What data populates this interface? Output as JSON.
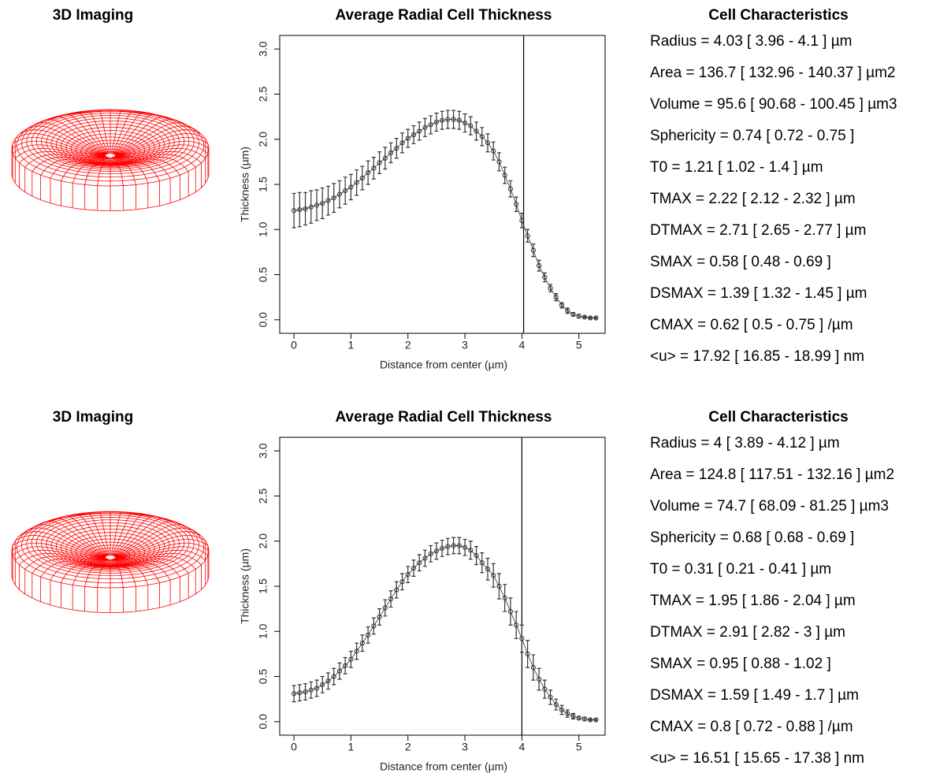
{
  "chart_data": [
    {
      "type": "line",
      "title": "Average Radial Cell Thickness",
      "xlabel": "Distance from center (µm)",
      "ylabel": "Thickness (µm)",
      "x": [
        0,
        0.1,
        0.2,
        0.3,
        0.4,
        0.5,
        0.6,
        0.7,
        0.8,
        0.9,
        1,
        1.1,
        1.2,
        1.3,
        1.4,
        1.5,
        1.6,
        1.7,
        1.8,
        1.9,
        2,
        2.1,
        2.2,
        2.3,
        2.4,
        2.5,
        2.6,
        2.7,
        2.8,
        2.9,
        3,
        3.1,
        3.2,
        3.3,
        3.4,
        3.5,
        3.6,
        3.7,
        3.8,
        3.9,
        4,
        4.1,
        4.2,
        4.3,
        4.4,
        4.5,
        4.6,
        4.7,
        4.8,
        4.9,
        5,
        5.1,
        5.2,
        5.3
      ],
      "values": [
        1.21,
        1.22,
        1.23,
        1.25,
        1.27,
        1.29,
        1.32,
        1.35,
        1.39,
        1.43,
        1.47,
        1.52,
        1.57,
        1.63,
        1.68,
        1.74,
        1.79,
        1.85,
        1.9,
        1.96,
        2.01,
        2.05,
        2.09,
        2.13,
        2.16,
        2.19,
        2.21,
        2.22,
        2.22,
        2.21,
        2.18,
        2.15,
        2.09,
        2.03,
        1.96,
        1.87,
        1.75,
        1.6,
        1.45,
        1.28,
        1.1,
        0.93,
        0.77,
        0.6,
        0.47,
        0.35,
        0.25,
        0.16,
        0.1,
        0.06,
        0.04,
        0.03,
        0.02,
        0.02
      ],
      "errors": [
        0.19,
        0.19,
        0.18,
        0.18,
        0.17,
        0.17,
        0.16,
        0.16,
        0.15,
        0.15,
        0.14,
        0.14,
        0.13,
        0.13,
        0.12,
        0.12,
        0.12,
        0.11,
        0.11,
        0.11,
        0.1,
        0.1,
        0.1,
        0.1,
        0.1,
        0.1,
        0.1,
        0.1,
        0.1,
        0.1,
        0.1,
        0.1,
        0.1,
        0.1,
        0.1,
        0.1,
        0.1,
        0.09,
        0.09,
        0.08,
        0.08,
        0.07,
        0.07,
        0.06,
        0.05,
        0.04,
        0.04,
        0.03,
        0.03,
        0.02,
        0.02,
        0.01,
        0.01,
        0.01
      ],
      "vline": 4.03,
      "color": "#333333",
      "xlim": [
        -0.25,
        5.46
      ],
      "ylim": [
        -0.15,
        3.15
      ],
      "xticks": [
        0,
        1,
        2,
        3,
        4,
        5
      ],
      "yticks": [
        {
          "value": 0,
          "label": "0.0"
        },
        0.5,
        {
          "value": 1,
          "label": "1.0"
        },
        1.5,
        {
          "value": 2,
          "label": "2.0"
        },
        2.5,
        {
          "value": 3,
          "label": "3.0"
        }
      ]
    },
    {
      "type": "line",
      "title": "Average Radial Cell Thickness",
      "xlabel": "Distance from center (µm)",
      "ylabel": "Thickness (µm)",
      "x": [
        0,
        0.1,
        0.2,
        0.3,
        0.4,
        0.5,
        0.6,
        0.7,
        0.8,
        0.9,
        1,
        1.1,
        1.2,
        1.3,
        1.4,
        1.5,
        1.6,
        1.7,
        1.8,
        1.9,
        2,
        2.1,
        2.2,
        2.3,
        2.4,
        2.5,
        2.6,
        2.7,
        2.8,
        2.9,
        3,
        3.1,
        3.2,
        3.3,
        3.4,
        3.5,
        3.6,
        3.7,
        3.8,
        3.9,
        4,
        4.1,
        4.2,
        4.3,
        4.4,
        4.5,
        4.6,
        4.7,
        4.8,
        4.9,
        5,
        5.1,
        5.2,
        5.3
      ],
      "values": [
        0.31,
        0.32,
        0.33,
        0.35,
        0.37,
        0.41,
        0.45,
        0.5,
        0.56,
        0.62,
        0.69,
        0.78,
        0.87,
        0.96,
        1.06,
        1.16,
        1.26,
        1.36,
        1.46,
        1.55,
        1.63,
        1.7,
        1.76,
        1.81,
        1.86,
        1.89,
        1.92,
        1.94,
        1.95,
        1.95,
        1.93,
        1.9,
        1.84,
        1.76,
        1.69,
        1.62,
        1.5,
        1.37,
        1.22,
        1.07,
        0.92,
        0.75,
        0.6,
        0.47,
        0.36,
        0.27,
        0.19,
        0.13,
        0.09,
        0.06,
        0.04,
        0.03,
        0.02,
        0.02
      ],
      "errors": [
        0.09,
        0.09,
        0.09,
        0.09,
        0.09,
        0.09,
        0.09,
        0.09,
        0.09,
        0.09,
        0.09,
        0.09,
        0.09,
        0.09,
        0.09,
        0.09,
        0.09,
        0.09,
        0.09,
        0.09,
        0.09,
        0.09,
        0.09,
        0.09,
        0.09,
        0.09,
        0.09,
        0.09,
        0.09,
        0.09,
        0.09,
        0.1,
        0.1,
        0.11,
        0.12,
        0.13,
        0.14,
        0.15,
        0.15,
        0.15,
        0.15,
        0.15,
        0.14,
        0.12,
        0.1,
        0.08,
        0.06,
        0.05,
        0.04,
        0.03,
        0.02,
        0.02,
        0.01,
        0.01
      ],
      "vline": 4,
      "color": "#333333",
      "xlim": [
        -0.25,
        5.46
      ],
      "ylim": [
        -0.15,
        3.15
      ],
      "xticks": [
        0,
        1,
        2,
        3,
        4,
        5
      ],
      "yticks": [
        {
          "value": 0,
          "label": "0.0"
        },
        0.5,
        {
          "value": 1,
          "label": "1.0"
        },
        1.5,
        {
          "value": 2,
          "label": "2.0"
        },
        2.5,
        {
          "value": 3,
          "label": "3.0"
        }
      ]
    }
  ],
  "panels": [
    {
      "imaging_title": "3D Imaging",
      "characteristics_title": "Cell Characteristics",
      "characteristics": [
        "Radius = 4.03 [ 3.96 - 4.1 ] µm",
        "Area = 136.7 [ 132.96 - 140.37 ] µm2",
        "Volume = 95.6 [ 90.68 - 100.45 ] µm3",
        "Sphericity = 0.74 [ 0.72 - 0.75 ]",
        "T0 = 1.21 [ 1.02 - 1.4 ] µm",
        "TMAX = 2.22 [ 2.12 - 2.32 ] µm",
        "DTMAX = 2.71 [ 2.65 - 2.77 ] µm",
        "SMAX = 0.58 [ 0.48 - 0.69 ]",
        "DSMAX = 1.39 [ 1.32 - 1.45 ] µm",
        "CMAX = 0.62 [ 0.5 - 0.75 ] /µm",
        "<u> = 17.92 [ 16.85 - 18.99 ] nm"
      ]
    },
    {
      "imaging_title": "3D Imaging",
      "characteristics_title": "Cell Characteristics",
      "characteristics": [
        "Radius = 4 [ 3.89 - 4.12 ] µm",
        "Area = 124.8 [ 117.51 - 132.16 ] µm2",
        "Volume = 74.7 [ 68.09 - 81.25 ] µm3",
        "Sphericity = 0.68 [ 0.68 - 0.69 ]",
        "T0 = 0.31 [ 0.21 - 0.41 ] µm",
        "TMAX = 1.95 [ 1.86 - 2.04 ] µm",
        "DTMAX = 2.91 [ 2.82 - 3 ] µm",
        "SMAX = 0.95 [ 0.88 - 1.02 ]",
        "DSMAX = 1.59 [ 1.49 - 1.7 ] µm",
        "CMAX = 0.8 [ 0.72 - 0.88 ] /µm",
        "<u> = 16.51 [ 15.65 - 17.38 ] nm"
      ]
    }
  ]
}
